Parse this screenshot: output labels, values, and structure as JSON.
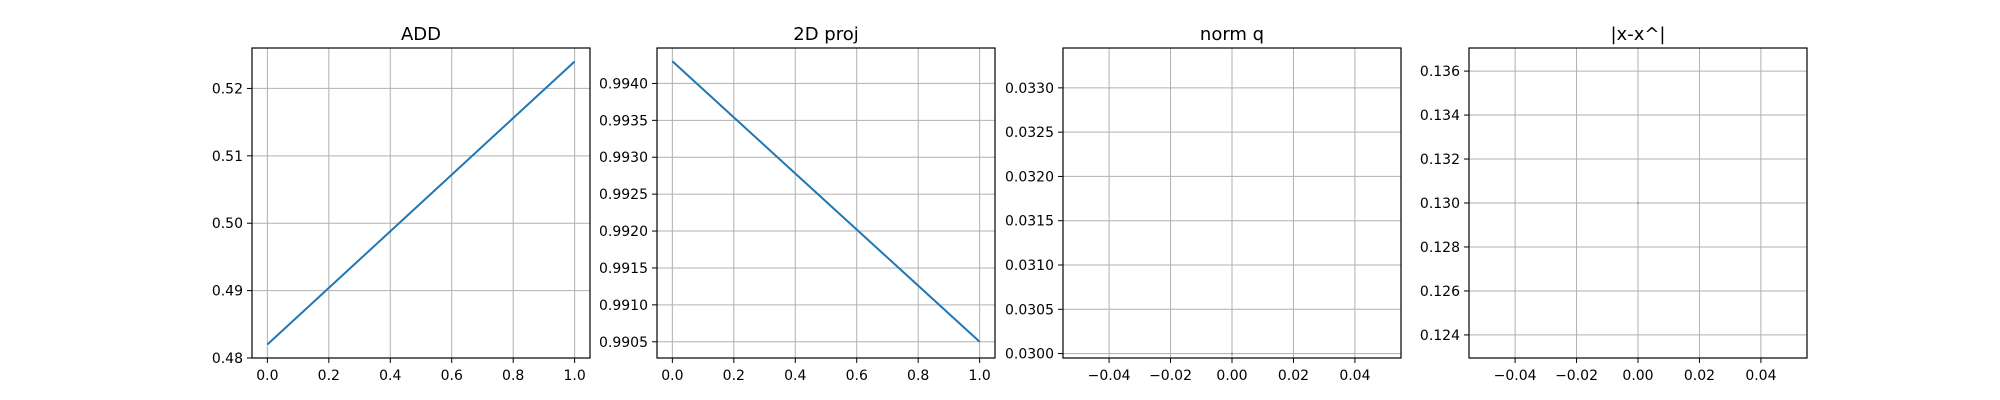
{
  "chart_data": [
    {
      "type": "line",
      "title": "ADD",
      "xlim": [
        -0.05,
        1.05
      ],
      "ylim": [
        0.48,
        0.526
      ],
      "xticks": [
        "0.0",
        "0.2",
        "0.4",
        "0.6",
        "0.8",
        "1.0"
      ],
      "yticks": [
        "0.48",
        "0.49",
        "0.50",
        "0.51",
        "0.52"
      ],
      "grid": true,
      "color": "#1f77b4",
      "series": [
        {
          "x": [
            0,
            1
          ],
          "y": [
            0.482,
            0.524
          ]
        }
      ]
    },
    {
      "type": "line",
      "title": "2D proj",
      "xlim": [
        -0.05,
        1.05
      ],
      "ylim": [
        0.99028,
        0.99448
      ],
      "xticks": [
        "0.0",
        "0.2",
        "0.4",
        "0.6",
        "0.8",
        "1.0"
      ],
      "yticks": [
        "0.9905",
        "0.9910",
        "0.9915",
        "0.9920",
        "0.9925",
        "0.9930",
        "0.9935",
        "0.9940"
      ],
      "grid": true,
      "color": "#1f77b4",
      "series": [
        {
          "x": [
            0,
            1
          ],
          "y": [
            0.9943,
            0.9905
          ]
        }
      ]
    },
    {
      "type": "line",
      "title": "norm q",
      "xlim": [
        -0.055,
        0.055
      ],
      "ylim": [
        0.02995,
        0.03345
      ],
      "xticks": [
        "−0.04",
        "−0.02",
        "0.00",
        "0.02",
        "0.04"
      ],
      "yticks": [
        "0.0300",
        "0.0305",
        "0.0310",
        "0.0315",
        "0.0320",
        "0.0325",
        "0.0330"
      ],
      "grid": true,
      "color": "#1f77b4",
      "series": [
        {
          "x": [
            0
          ],
          "y": [
            0.03
          ]
        }
      ]
    },
    {
      "type": "line",
      "title": "|x-x^|",
      "xlim": [
        -0.055,
        0.055
      ],
      "ylim": [
        0.12295,
        0.13705
      ],
      "xticks": [
        "−0.04",
        "−0.02",
        "0.00",
        "0.02",
        "0.04"
      ],
      "yticks": [
        "0.124",
        "0.126",
        "0.128",
        "0.130",
        "0.132",
        "0.134",
        "0.136"
      ],
      "grid": true,
      "color": "#1f77b4",
      "series": [
        {
          "x": [
            0
          ],
          "y": [
            0.13
          ]
        }
      ]
    }
  ]
}
